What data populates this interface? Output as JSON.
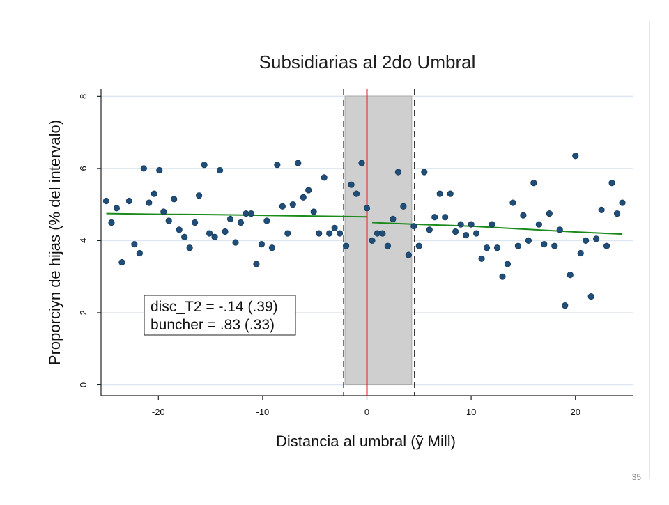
{
  "chart_data": {
    "type": "scatter",
    "title": "Subsidiarias al 2do Umbral",
    "xlabel": "Distancia al umbral (ỹ  Mill)",
    "ylabel": "Proporciyn de hijas (% del intervalo)",
    "xlim": [
      -25.5,
      25.5
    ],
    "ylim": [
      -0.3,
      8.2
    ],
    "xticks": [
      -20,
      -10,
      0,
      10,
      20
    ],
    "xtick_labels": [
      "-20",
      "-10",
      "0",
      "10",
      "20"
    ],
    "yticks": [
      0,
      2,
      4,
      6,
      8
    ],
    "ytick_labels": [
      "0",
      "2",
      "4",
      "6",
      "8"
    ],
    "grid": "horizontal",
    "excluded_region": [
      -2.1,
      4.3
    ],
    "threshold_x": 0,
    "points": [
      [
        -25.0,
        5.1
      ],
      [
        -24.5,
        4.5
      ],
      [
        -24.0,
        4.9
      ],
      [
        -23.5,
        3.4
      ],
      [
        -22.8,
        5.1
      ],
      [
        -22.3,
        3.9
      ],
      [
        -21.8,
        3.65
      ],
      [
        -21.4,
        6.0
      ],
      [
        -20.9,
        5.05
      ],
      [
        -20.4,
        5.3
      ],
      [
        -19.9,
        5.95
      ],
      [
        -19.5,
        4.8
      ],
      [
        -19.0,
        4.55
      ],
      [
        -18.5,
        5.15
      ],
      [
        -18.0,
        4.3
      ],
      [
        -17.5,
        4.1
      ],
      [
        -17.0,
        3.8
      ],
      [
        -16.5,
        4.5
      ],
      [
        -16.1,
        5.25
      ],
      [
        -15.6,
        6.1
      ],
      [
        -15.1,
        4.2
      ],
      [
        -14.6,
        4.1
      ],
      [
        -14.1,
        5.95
      ],
      [
        -13.6,
        4.25
      ],
      [
        -13.1,
        4.6
      ],
      [
        -12.6,
        3.95
      ],
      [
        -12.1,
        4.5
      ],
      [
        -11.6,
        4.75
      ],
      [
        -11.1,
        4.75
      ],
      [
        -10.6,
        3.35
      ],
      [
        -10.1,
        3.9
      ],
      [
        -9.6,
        4.55
      ],
      [
        -9.1,
        3.8
      ],
      [
        -8.6,
        6.1
      ],
      [
        -8.1,
        4.95
      ],
      [
        -7.6,
        4.2
      ],
      [
        -7.1,
        5.0
      ],
      [
        -6.6,
        6.15
      ],
      [
        -6.1,
        5.2
      ],
      [
        -5.6,
        5.4
      ],
      [
        -5.1,
        4.8
      ],
      [
        -4.6,
        4.2
      ],
      [
        -4.1,
        5.75
      ],
      [
        -3.6,
        4.2
      ],
      [
        -3.1,
        4.35
      ],
      [
        -2.6,
        4.2
      ],
      [
        -2.0,
        3.85
      ],
      [
        -1.5,
        5.55
      ],
      [
        -1.0,
        5.3
      ],
      [
        -0.5,
        6.15
      ],
      [
        0.0,
        4.9
      ],
      [
        0.5,
        4.0
      ],
      [
        1.0,
        4.2
      ],
      [
        1.5,
        4.2
      ],
      [
        2.0,
        3.85
      ],
      [
        2.5,
        4.6
      ],
      [
        3.0,
        5.9
      ],
      [
        3.5,
        4.95
      ],
      [
        4.0,
        3.6
      ],
      [
        4.5,
        4.4
      ],
      [
        5.0,
        3.85
      ],
      [
        5.5,
        5.9
      ],
      [
        6.0,
        4.3
      ],
      [
        6.5,
        4.65
      ],
      [
        7.0,
        5.3
      ],
      [
        7.5,
        4.65
      ],
      [
        8.0,
        5.3
      ],
      [
        8.5,
        4.25
      ],
      [
        9.0,
        4.45
      ],
      [
        9.5,
        4.15
      ],
      [
        10.0,
        4.45
      ],
      [
        10.5,
        4.2
      ],
      [
        11.0,
        3.5
      ],
      [
        11.5,
        3.8
      ],
      [
        12.0,
        4.45
      ],
      [
        12.5,
        3.8
      ],
      [
        13.0,
        3.0
      ],
      [
        13.5,
        3.35
      ],
      [
        14.0,
        5.05
      ],
      [
        14.5,
        3.85
      ],
      [
        15.0,
        4.7
      ],
      [
        15.5,
        4.0
      ],
      [
        16.0,
        5.6
      ],
      [
        16.5,
        4.45
      ],
      [
        17.0,
        3.9
      ],
      [
        17.5,
        4.75
      ],
      [
        18.0,
        3.85
      ],
      [
        18.5,
        4.3
      ],
      [
        19.0,
        2.2
      ],
      [
        19.5,
        3.05
      ],
      [
        20.0,
        6.35
      ],
      [
        20.5,
        3.65
      ],
      [
        21.0,
        4.0
      ],
      [
        21.5,
        2.45
      ],
      [
        22.0,
        4.05
      ],
      [
        22.5,
        4.85
      ],
      [
        23.0,
        3.85
      ],
      [
        23.5,
        5.6
      ],
      [
        24.0,
        4.75
      ],
      [
        24.5,
        5.05
      ]
    ],
    "fit_left": [
      [
        -25.0,
        4.75
      ],
      [
        -20.0,
        4.73
      ],
      [
        -15.0,
        4.72
      ],
      [
        -10.0,
        4.7
      ],
      [
        -5.0,
        4.68
      ],
      [
        0.0,
        4.66
      ]
    ],
    "fit_right": [
      [
        0.5,
        4.5
      ],
      [
        5.0,
        4.45
      ],
      [
        10.0,
        4.4
      ],
      [
        15.0,
        4.32
      ],
      [
        20.0,
        4.24
      ],
      [
        24.5,
        4.18
      ]
    ],
    "annotation": {
      "line1": "disc_T2 = -.14 (.39)",
      "line2": "buncher = .83 (.33)"
    },
    "colors": {
      "points": "#1f4e79",
      "fit": "#1a8a1a",
      "threshold": "#e02020",
      "excluded_fill": "#cfcfcf",
      "grid": "#dce6ee"
    }
  },
  "page_number": "35"
}
